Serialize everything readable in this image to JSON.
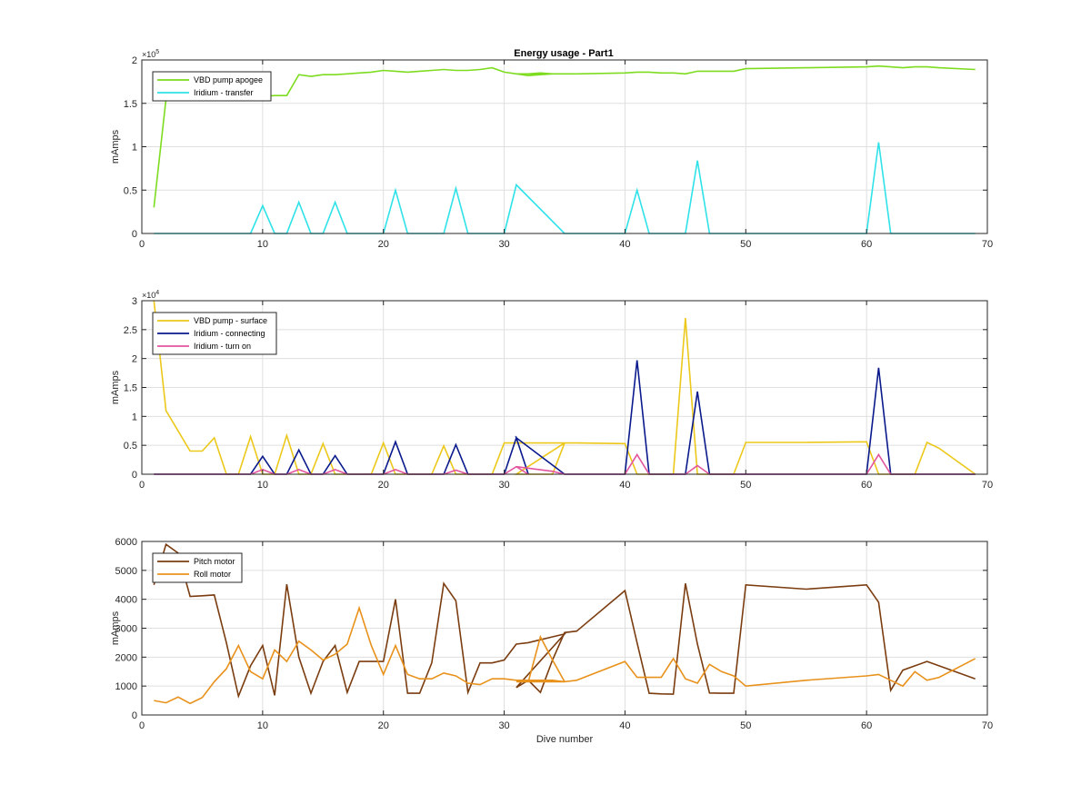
{
  "figure": {
    "title": "Energy usage - Part1"
  },
  "chart_data": [
    {
      "type": "line",
      "title": "Energy usage - Part1",
      "xlabel": "",
      "ylabel": "mAmps",
      "xlim": [
        0,
        70
      ],
      "ylim": [
        0,
        200000
      ],
      "xticks": [
        0,
        10,
        20,
        30,
        40,
        50,
        60,
        70
      ],
      "yticks": [
        0,
        50000,
        100000,
        150000,
        200000
      ],
      "ytick_labels": [
        "0",
        "0.5",
        "1",
        "1.5",
        "2"
      ],
      "exponent": {
        "base": "×10",
        "power": "5"
      },
      "grid": true,
      "legend_position": "top-left",
      "series": [
        {
          "name": "VBD pump apogee",
          "color": "#7ddc1f",
          "x": [
            1,
            2,
            3,
            4,
            5,
            6,
            7,
            8,
            9,
            10,
            11,
            12,
            13,
            14,
            15,
            16,
            17,
            18,
            19,
            20,
            21,
            22,
            23,
            24,
            25,
            26,
            27,
            28,
            29,
            30,
            31,
            32,
            33,
            34,
            35,
            31,
            32,
            33,
            34,
            35,
            36,
            40,
            41,
            42,
            43,
            44,
            45,
            46,
            47,
            48,
            49,
            50,
            55,
            60,
            61,
            62,
            63,
            64,
            65,
            66,
            69
          ],
          "y": [
            30000,
            155000,
            162000,
            163000,
            163000,
            162000,
            162000,
            161000,
            160000,
            158000,
            159000,
            159000,
            183000,
            181000,
            183000,
            183000,
            184000,
            185000,
            186000,
            188000,
            187000,
            186000,
            187000,
            188000,
            189000,
            188000,
            188000,
            189000,
            191000,
            186000,
            184000,
            184000,
            185000,
            184000,
            184000,
            184000,
            182000,
            183000,
            184000,
            184000,
            184000,
            185000,
            186000,
            186000,
            185000,
            185000,
            184000,
            187000,
            187000,
            187000,
            187000,
            190000,
            191000,
            192000,
            193000,
            192000,
            191000,
            192000,
            192000,
            191000,
            189000
          ]
        },
        {
          "name": "Iridium - transfer",
          "color": "#2ee2e8",
          "x": [
            1,
            9,
            10,
            11,
            12,
            13,
            14,
            15,
            16,
            17,
            20,
            21,
            22,
            25,
            26,
            27,
            30,
            31,
            35,
            40,
            41,
            42,
            45,
            46,
            47,
            60,
            61,
            62,
            69
          ],
          "y": [
            0,
            0,
            32000,
            0,
            0,
            36000,
            0,
            0,
            36000,
            0,
            0,
            50000,
            0,
            0,
            52000,
            0,
            0,
            56000,
            0,
            0,
            50000,
            0,
            0,
            84000,
            0,
            0,
            105000,
            0,
            0
          ]
        }
      ]
    },
    {
      "type": "line",
      "title": "",
      "xlabel": "",
      "ylabel": "mAmps",
      "xlim": [
        0,
        70
      ],
      "ylim": [
        0,
        30000
      ],
      "xticks": [
        0,
        10,
        20,
        30,
        40,
        50,
        60,
        70
      ],
      "yticks": [
        0,
        5000,
        10000,
        15000,
        20000,
        25000,
        30000
      ],
      "ytick_labels": [
        "0",
        "0.5",
        "1",
        "1.5",
        "2",
        "2.5",
        "3"
      ],
      "exponent": {
        "base": "×10",
        "power": "4"
      },
      "grid": true,
      "legend_position": "top-left",
      "series": [
        {
          "name": "VBD pump - surface",
          "color": "#ecc81a",
          "x": [
            1,
            2,
            3,
            4,
            5,
            6,
            7,
            8,
            9,
            10,
            11,
            12,
            13,
            14,
            15,
            16,
            17,
            18,
            19,
            20,
            21,
            22,
            23,
            24,
            25,
            26,
            27,
            28,
            29,
            30,
            31,
            32,
            33,
            34,
            35,
            31,
            32,
            33,
            34,
            35,
            36,
            40,
            41,
            42,
            43,
            44,
            45,
            46,
            47,
            48,
            49,
            50,
            55,
            60,
            61,
            62,
            63,
            64,
            65,
            66,
            69
          ],
          "y": [
            30000,
            11000,
            7500,
            4000,
            4000,
            6300,
            0,
            0,
            6500,
            0,
            0,
            6700,
            0,
            0,
            5300,
            0,
            0,
            0,
            0,
            5400,
            0,
            0,
            0,
            0,
            4900,
            0,
            0,
            0,
            0,
            5400,
            5400,
            5400,
            5400,
            5400,
            5400,
            0,
            0,
            0,
            0,
            5400,
            5400,
            5300,
            0,
            0,
            0,
            0,
            27000,
            0,
            0,
            0,
            0,
            5500,
            5500,
            5600,
            0,
            0,
            0,
            0,
            5500,
            4500,
            0
          ]
        },
        {
          "name": "Iridium - connecting",
          "color": "#0a1a8c",
          "x": [
            1,
            9,
            10,
            11,
            12,
            13,
            14,
            15,
            16,
            17,
            20,
            21,
            22,
            25,
            26,
            27,
            30,
            31,
            32,
            31,
            35,
            40,
            41,
            42,
            45,
            46,
            47,
            60,
            61,
            62,
            69
          ],
          "y": [
            0,
            0,
            3100,
            0,
            0,
            4200,
            0,
            0,
            3200,
            0,
            0,
            5600,
            0,
            0,
            5100,
            0,
            0,
            6300,
            0,
            6300,
            0,
            0,
            19700,
            0,
            0,
            14300,
            0,
            0,
            18400,
            0,
            0
          ]
        },
        {
          "name": "Iridium - turn on",
          "color": "#e2559e",
          "x": [
            1,
            9,
            10,
            11,
            12,
            13,
            14,
            15,
            16,
            17,
            20,
            21,
            22,
            25,
            26,
            27,
            30,
            31,
            32,
            31,
            34,
            35,
            40,
            41,
            42,
            45,
            46,
            47,
            60,
            61,
            62,
            69
          ],
          "y": [
            0,
            0,
            800,
            0,
            0,
            800,
            0,
            0,
            800,
            0,
            0,
            800,
            0,
            0,
            700,
            0,
            0,
            1300,
            0,
            1300,
            500,
            0,
            0,
            3400,
            0,
            0,
            1500,
            0,
            0,
            3400,
            0,
            0
          ]
        }
      ]
    },
    {
      "type": "line",
      "title": "",
      "xlabel": "Dive number",
      "ylabel": "mAmps",
      "xlim": [
        0,
        70
      ],
      "ylim": [
        0,
        6000
      ],
      "xticks": [
        0,
        10,
        20,
        30,
        40,
        50,
        60,
        70
      ],
      "yticks": [
        0,
        1000,
        2000,
        3000,
        4000,
        5000,
        6000
      ],
      "ytick_labels": [
        "0",
        "1000",
        "2000",
        "3000",
        "4000",
        "5000",
        "6000"
      ],
      "grid": true,
      "legend_position": "top-left",
      "series": [
        {
          "name": "Pitch motor",
          "color": "#7b3d10",
          "x": [
            1,
            2,
            3,
            4,
            5,
            6,
            7,
            8,
            9,
            10,
            11,
            12,
            13,
            14,
            15,
            16,
            17,
            18,
            19,
            20,
            21,
            22,
            23,
            24,
            25,
            26,
            27,
            28,
            29,
            30,
            31,
            32,
            33,
            34,
            35,
            31,
            32,
            33,
            34,
            35,
            36,
            40,
            41,
            42,
            43,
            44,
            45,
            46,
            47,
            48,
            49,
            50,
            55,
            60,
            61,
            62,
            63,
            64,
            65,
            66,
            69
          ],
          "y": [
            4500,
            5900,
            5600,
            4100,
            4120,
            4150,
            2500,
            650,
            1700,
            2400,
            680,
            4520,
            2000,
            750,
            1850,
            2400,
            780,
            1850,
            1850,
            1850,
            4000,
            750,
            750,
            1800,
            4550,
            3950,
            780,
            1800,
            1800,
            1900,
            2450,
            2500,
            2600,
            2700,
            2800,
            950,
            1200,
            780,
            1900,
            2850,
            2900,
            4300,
            2500,
            750,
            730,
            720,
            4550,
            2450,
            760,
            750,
            750,
            4500,
            4350,
            4500,
            3900,
            850,
            1550,
            1700,
            1850,
            1700,
            1250
          ]
        },
        {
          "name": "Roll motor",
          "color": "#e8921c",
          "x": [
            1,
            2,
            3,
            4,
            5,
            6,
            7,
            8,
            9,
            10,
            11,
            12,
            13,
            14,
            15,
            16,
            17,
            18,
            19,
            20,
            21,
            22,
            23,
            24,
            25,
            26,
            27,
            28,
            29,
            30,
            31,
            32,
            33,
            34,
            35,
            31,
            32,
            33,
            34,
            35,
            36,
            40,
            41,
            42,
            43,
            44,
            45,
            46,
            47,
            48,
            49,
            50,
            55,
            60,
            61,
            62,
            63,
            64,
            65,
            66,
            69
          ],
          "y": [
            500,
            420,
            620,
            400,
            600,
            1150,
            1600,
            2400,
            1500,
            1250,
            2250,
            1850,
            2550,
            2250,
            1900,
            2100,
            2450,
            3700,
            2400,
            1400,
            2400,
            1400,
            1250,
            1250,
            1450,
            1350,
            1100,
            1050,
            1250,
            1250,
            1200,
            1200,
            1200,
            1200,
            1150,
            1150,
            1150,
            2700,
            1900,
            1150,
            1200,
            1850,
            1300,
            1300,
            1300,
            1950,
            1250,
            1100,
            1750,
            1500,
            1350,
            1000,
            1200,
            1350,
            1400,
            1200,
            1000,
            1500,
            1200,
            1300,
            1950
          ]
        }
      ]
    }
  ]
}
